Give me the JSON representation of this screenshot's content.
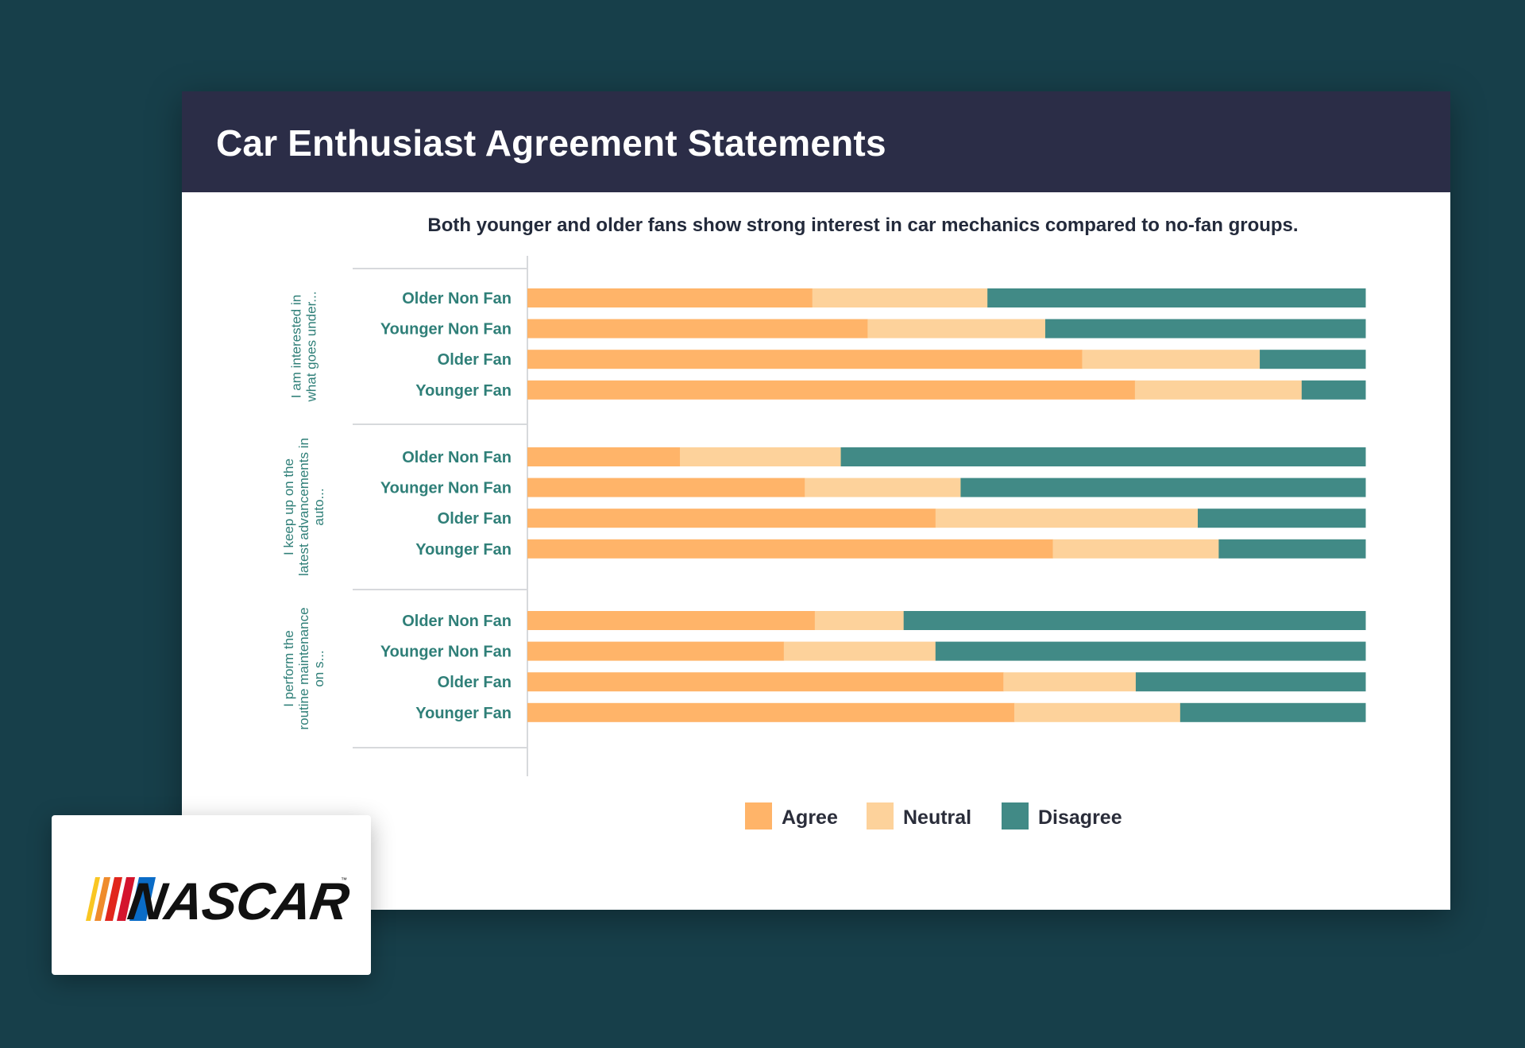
{
  "header": {
    "title": "Car Enthusiast Agreement Statements"
  },
  "logo": {
    "text": "NASCAR",
    "stripe_colors": [
      "#f9c623",
      "#ef8b2c",
      "#e1261c",
      "#d4142d",
      "#0a6cc7"
    ]
  },
  "colors": {
    "agree": "#ffb469",
    "neutral": "#fdd29b",
    "disagree": "#418a86",
    "label": "#2f7f78"
  },
  "chart_data": {
    "type": "bar",
    "orientation": "horizontal",
    "stacked": true,
    "title": "Both younger and older fans show strong interest in car mechanics compared to no-fan groups.",
    "xlim": [
      0,
      100
    ],
    "legend": {
      "placement": "bottom-center",
      "entries": [
        "Agree",
        "Neutral",
        "Disagree"
      ]
    },
    "groups": [
      {
        "label": "I am interested in what goes under...",
        "categories": [
          "Older Non Fan",
          "Younger Non Fan",
          "Older Fan",
          "Younger Fan"
        ],
        "series": [
          {
            "name": "Agree",
            "values": [
              34,
              40.6,
              66.2,
              72.5
            ]
          },
          {
            "name": "Neutral",
            "values": [
              20.9,
              21.2,
              21.2,
              19.9
            ]
          },
          {
            "name": "Disagree",
            "values": [
              45.1,
              38.2,
              12.6,
              7.6
            ]
          }
        ]
      },
      {
        "label": "I keep up on the latest advancements in auto...",
        "categories": [
          "Older Non Fan",
          "Younger Non Fan",
          "Older Fan",
          "Younger Fan"
        ],
        "series": [
          {
            "name": "Agree",
            "values": [
              18.2,
              33.1,
              48.7,
              62.7
            ]
          },
          {
            "name": "Neutral",
            "values": [
              19.2,
              18.6,
              31.3,
              19.8
            ]
          },
          {
            "name": "Disagree",
            "values": [
              62.6,
              48.3,
              20,
              17.5
            ]
          }
        ]
      },
      {
        "label": "I perform the routine maintenance on s...",
        "categories": [
          "Older Non Fan",
          "Younger Non Fan",
          "Older Fan",
          "Younger Fan"
        ],
        "series": [
          {
            "name": "Agree",
            "values": [
              34.3,
              30.6,
              56.8,
              58.1
            ]
          },
          {
            "name": "Neutral",
            "values": [
              10.6,
              18.1,
              15.8,
              19.8
            ]
          },
          {
            "name": "Disagree",
            "values": [
              55.1,
              51.3,
              27.4,
              22.1
            ]
          }
        ]
      }
    ]
  }
}
